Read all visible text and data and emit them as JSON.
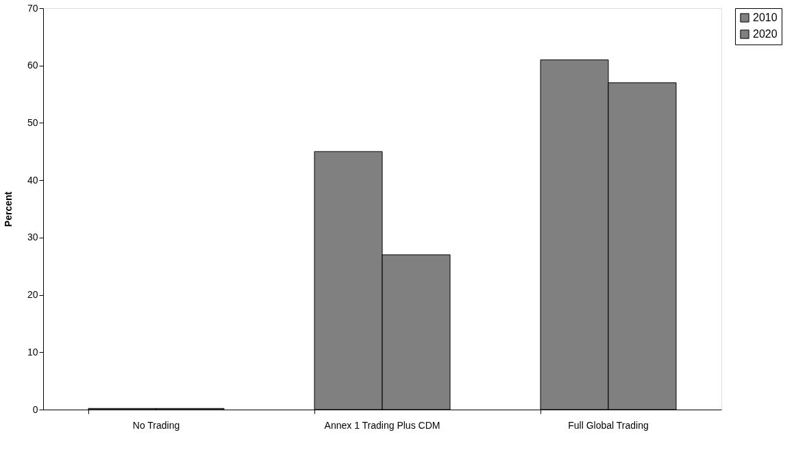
{
  "chart_data": {
    "type": "bar",
    "ylabel": "Percent",
    "categories": [
      "No Trading",
      "Annex 1 Trading Plus CDM",
      "Full Global Trading"
    ],
    "series": [
      {
        "name": "2010",
        "color": "#808080",
        "values": [
          0.2,
          45,
          61
        ]
      },
      {
        "name": "2020",
        "color": "#808080",
        "values": [
          0.2,
          27,
          57
        ]
      }
    ],
    "ylim": [
      0,
      70
    ],
    "yticks": [
      0,
      10,
      20,
      30,
      40,
      50,
      60,
      70
    ],
    "grid": false,
    "legend": "right"
  }
}
